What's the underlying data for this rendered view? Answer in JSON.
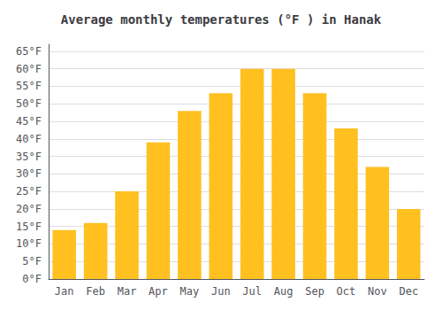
{
  "chart_data": {
    "type": "bar",
    "title": "Average monthly temperatures (°F ) in Hanak",
    "categories": [
      "Jan",
      "Feb",
      "Mar",
      "Apr",
      "May",
      "Jun",
      "Jul",
      "Aug",
      "Sep",
      "Oct",
      "Nov",
      "Dec"
    ],
    "values": [
      14,
      16,
      25,
      39,
      48,
      53,
      60,
      60,
      53,
      43,
      32,
      20
    ],
    "color": "#FFC020",
    "ylim": [
      0,
      67
    ],
    "yticks": [
      {
        "value": 0,
        "label": "0°F"
      },
      {
        "value": 5,
        "label": "5°F"
      },
      {
        "value": 10,
        "label": "10°F"
      },
      {
        "value": 15,
        "label": "15°F"
      },
      {
        "value": 20,
        "label": "20°F"
      },
      {
        "value": 25,
        "label": "25°F"
      },
      {
        "value": 30,
        "label": "30°F"
      },
      {
        "value": 35,
        "label": "35°F"
      },
      {
        "value": 40,
        "label": "40°F"
      },
      {
        "value": 45,
        "label": "45°F"
      },
      {
        "value": 50,
        "label": "50°F"
      },
      {
        "value": 55,
        "label": "55°F"
      },
      {
        "value": 60,
        "label": "60°F"
      },
      {
        "value": 65,
        "label": "65°F"
      }
    ],
    "grid": true
  }
}
